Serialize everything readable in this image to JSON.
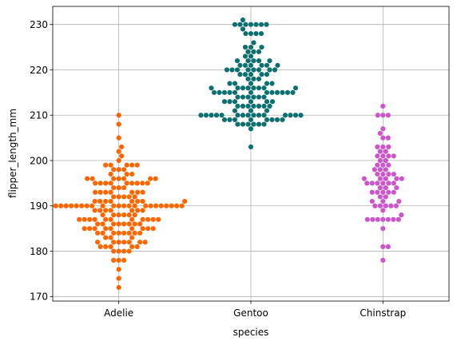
{
  "chart_data": {
    "type": "scatter",
    "subtype": "swarm",
    "title": "",
    "xlabel": "species",
    "ylabel": "flipper_length_mm",
    "categories": [
      "Adelie",
      "Gentoo",
      "Chinstrap"
    ],
    "ylim": [
      169,
      234
    ],
    "yticks": [
      170,
      180,
      190,
      200,
      210,
      220,
      230
    ],
    "grid": true,
    "legend": "none",
    "series": [
      {
        "category": "Adelie",
        "color": "#ff6600",
        "values": [
          172,
          174,
          176,
          178,
          178,
          178,
          180,
          180,
          180,
          180,
          181,
          181,
          181,
          181,
          181,
          182,
          182,
          182,
          182,
          182,
          182,
          182,
          183,
          183,
          183,
          184,
          184,
          184,
          184,
          184,
          184,
          184,
          184,
          185,
          185,
          185,
          185,
          185,
          185,
          185,
          185,
          185,
          186,
          186,
          186,
          186,
          186,
          186,
          186,
          186,
          187,
          187,
          187,
          187,
          187,
          187,
          187,
          187,
          187,
          187,
          187,
          188,
          188,
          188,
          188,
          188,
          188,
          189,
          189,
          189,
          189,
          189,
          189,
          189,
          190,
          190,
          190,
          190,
          190,
          190,
          190,
          190,
          190,
          190,
          190,
          190,
          190,
          190,
          190,
          190,
          190,
          190,
          190,
          190,
          190,
          190,
          191,
          191,
          191,
          191,
          191,
          191,
          191,
          191,
          192,
          192,
          192,
          192,
          192,
          193,
          193,
          193,
          193,
          193,
          193,
          193,
          194,
          194,
          194,
          195,
          195,
          195,
          195,
          195,
          195,
          195,
          195,
          195,
          196,
          196,
          196,
          196,
          196,
          196,
          196,
          197,
          197,
          197,
          198,
          198,
          198,
          199,
          199,
          199,
          199,
          199,
          200,
          201,
          202,
          203,
          205,
          208,
          210
        ]
      },
      {
        "category": "Gentoo",
        "color": "#0d7070",
        "values": [
          203,
          207,
          208,
          208,
          208,
          208,
          208,
          208,
          209,
          209,
          209,
          209,
          209,
          209,
          209,
          209,
          210,
          210,
          210,
          210,
          210,
          210,
          210,
          210,
          210,
          210,
          210,
          210,
          210,
          210,
          210,
          211,
          211,
          211,
          212,
          212,
          212,
          212,
          212,
          212,
          212,
          213,
          213,
          213,
          213,
          213,
          213,
          214,
          214,
          214,
          214,
          214,
          214,
          215,
          215,
          215,
          215,
          215,
          215,
          215,
          215,
          215,
          215,
          215,
          215,
          216,
          216,
          216,
          216,
          216,
          216,
          216,
          216,
          217,
          217,
          217,
          217,
          217,
          218,
          218,
          218,
          219,
          219,
          219,
          219,
          219,
          220,
          220,
          220,
          220,
          220,
          220,
          220,
          220,
          221,
          221,
          221,
          221,
          221,
          221,
          222,
          222,
          222,
          222,
          222,
          223,
          223,
          224,
          224,
          224,
          225,
          225,
          225,
          226,
          228,
          228,
          228,
          228,
          229,
          230,
          230,
          230,
          230,
          230,
          230,
          230,
          231
        ]
      },
      {
        "category": "Chinstrap",
        "color": "#cc55cc",
        "values": [
          178,
          181,
          181,
          185,
          187,
          187,
          187,
          187,
          187,
          187,
          187,
          188,
          189,
          190,
          190,
          190,
          190,
          190,
          191,
          191,
          191,
          192,
          192,
          193,
          193,
          193,
          193,
          193,
          194,
          194,
          194,
          195,
          195,
          195,
          195,
          195,
          195,
          196,
          196,
          196,
          196,
          196,
          197,
          197,
          197,
          197,
          198,
          198,
          198,
          199,
          199,
          199,
          200,
          200,
          201,
          201,
          201,
          201,
          202,
          202,
          203,
          203,
          203,
          205,
          205,
          206,
          207,
          210,
          210,
          210,
          212
        ]
      }
    ]
  }
}
